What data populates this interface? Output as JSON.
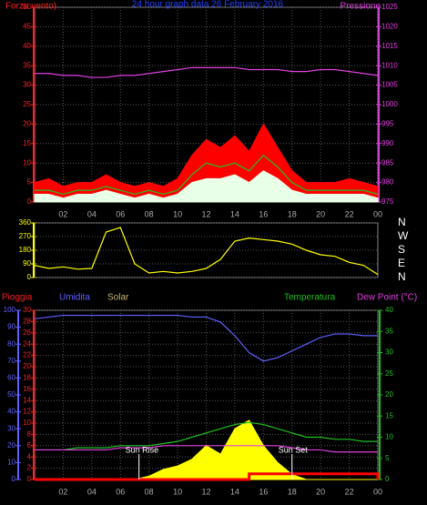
{
  "chart_data": [
    {
      "type": "line",
      "title": "24 hour graph data 26 February 2016",
      "ylabel": "Forza vento)",
      "y2label": "Pressione",
      "xlim": [
        0,
        24
      ],
      "xticks": [
        {
          "value": 2,
          "label": "02"
        },
        {
          "value": 4,
          "label": "04"
        },
        {
          "value": 6,
          "label": "06"
        },
        {
          "value": 8,
          "label": "08"
        },
        10,
        12,
        14,
        16,
        18,
        20,
        22,
        {
          "value": 24,
          "label": "00"
        }
      ],
      "ylim": [
        0,
        50
      ],
      "yticks": [
        0,
        5,
        10,
        15,
        20,
        25,
        30,
        35,
        40,
        45,
        50
      ],
      "ycolor": "#ff2020",
      "y2lim": [
        975,
        1025
      ],
      "y2ticks": [
        975,
        980,
        985,
        990,
        995,
        1000,
        1005,
        1010,
        1015,
        1020,
        1025
      ],
      "y2color": "#e040e0",
      "grid": true,
      "x": [
        0,
        1,
        2,
        3,
        4,
        5,
        6,
        7,
        8,
        9,
        10,
        11,
        12,
        13,
        14,
        15,
        16,
        17,
        18,
        19,
        20,
        21,
        22,
        23,
        24
      ],
      "series": [
        {
          "color": "#ff0000",
          "style": "area",
          "values": [
            5,
            6,
            4,
            5,
            5,
            7,
            5,
            4,
            5,
            4,
            6,
            12,
            16,
            14,
            17,
            13,
            20,
            14,
            8,
            5,
            5,
            5,
            6,
            5,
            4
          ]
        },
        {
          "color": "#20c020",
          "style": "line",
          "values": [
            3,
            3,
            2,
            3,
            3,
            4,
            3,
            2,
            3,
            2,
            3,
            7,
            10,
            9,
            10,
            8,
            12,
            9,
            5,
            3,
            3,
            3,
            3,
            3,
            2
          ]
        },
        {
          "color": "#e8ffe8",
          "style": "area",
          "values": [
            2,
            2,
            1,
            2,
            2,
            3,
            2,
            1,
            2,
            1,
            2,
            5,
            6,
            6,
            7,
            5,
            8,
            6,
            3,
            2,
            2,
            2,
            2,
            2,
            1
          ]
        },
        {
          "color": "#e040e0",
          "style": "line",
          "axis": "y2",
          "values": [
            1008,
            1008,
            1007.5,
            1007.5,
            1007,
            1007,
            1007.5,
            1007.5,
            1008,
            1008.5,
            1009,
            1009.5,
            1009.5,
            1009.5,
            1009.5,
            1009,
            1009,
            1009,
            1008.5,
            1008.5,
            1009,
            1009,
            1008.5,
            1008,
            1007.5
          ]
        }
      ]
    },
    {
      "type": "line",
      "xlim": [
        0,
        24
      ],
      "ylim": [
        0,
        360
      ],
      "yticks": [
        0,
        90,
        180,
        270,
        360
      ],
      "ycolor": "#ffff00",
      "y2lim": [
        0,
        360
      ],
      "y2ticks": [
        {
          "value": 0,
          "label": "N"
        },
        {
          "value": 90,
          "label": "E"
        },
        {
          "value": 180,
          "label": "S"
        },
        {
          "value": 270,
          "label": "W"
        },
        {
          "value": 360,
          "label": "N"
        }
      ],
      "y2color": "#ffffff",
      "grid": true,
      "x": [
        0,
        1,
        2,
        3,
        4,
        5,
        6,
        7,
        8,
        9,
        10,
        11,
        12,
        13,
        14,
        15,
        16,
        17,
        18,
        19,
        20,
        21,
        22,
        23,
        24
      ],
      "series": [
        {
          "color": "#ffff00",
          "style": "line",
          "values": [
            80,
            60,
            70,
            55,
            60,
            300,
            330,
            90,
            30,
            40,
            30,
            40,
            60,
            120,
            240,
            260,
            250,
            240,
            220,
            180,
            150,
            140,
            100,
            80,
            20
          ]
        }
      ]
    },
    {
      "type": "line",
      "labels": [
        {
          "text": "Pioggia",
          "color": "#ff2020"
        },
        {
          "text": "Umidita",
          "color": "#6060ff"
        },
        {
          "text": "Solar",
          "color": "#c8b878"
        },
        {
          "text": "Temperatura",
          "color": "#20c020"
        },
        {
          "text": "Dew Point (°C)",
          "color": "#e040e0"
        }
      ],
      "annotations": [
        {
          "text": "Sun Rise",
          "x": 7.3
        },
        {
          "text": "Sun Set",
          "x": 18
        }
      ],
      "xlim": [
        0,
        24
      ],
      "xticks": [
        {
          "value": 2,
          "label": "02"
        },
        {
          "value": 4,
          "label": "04"
        },
        {
          "value": 6,
          "label": "06"
        },
        {
          "value": 8,
          "label": "08"
        },
        10,
        12,
        14,
        16,
        18,
        20,
        22,
        {
          "value": 24,
          "label": "00"
        }
      ],
      "ylim": [
        0,
        30
      ],
      "yticks": [
        0,
        2,
        4,
        6,
        8,
        10,
        12,
        14,
        16,
        18,
        20,
        22,
        24,
        26,
        28,
        30
      ],
      "ycolor": "#ff2020",
      "y3lim": [
        0,
        100
      ],
      "y3ticks": [
        0,
        10,
        20,
        30,
        40,
        50,
        60,
        70,
        80,
        90,
        100
      ],
      "y3color": "#6060ff",
      "y2lim": [
        0,
        40
      ],
      "y2ticks": [
        0,
        5,
        10,
        15,
        20,
        25,
        30,
        35,
        40
      ],
      "y2color": "#20c020",
      "grid": true,
      "x": [
        0,
        1,
        2,
        3,
        4,
        5,
        6,
        7,
        8,
        9,
        10,
        11,
        12,
        13,
        14,
        15,
        16,
        17,
        18,
        19,
        20,
        21,
        22,
        23,
        24
      ],
      "series": [
        {
          "color": "#ffff00",
          "style": "area",
          "axis": "y3",
          "values": [
            0,
            0,
            0,
            0,
            0,
            0,
            0,
            0,
            2,
            6,
            8,
            12,
            20,
            15,
            30,
            35,
            20,
            10,
            3,
            0,
            0,
            0,
            0,
            0,
            0
          ]
        },
        {
          "color": "#6060ff",
          "style": "line",
          "axis": "y3",
          "values": [
            95,
            96,
            97,
            97,
            97,
            97,
            97,
            97,
            97,
            97,
            97,
            96,
            96,
            93,
            85,
            75,
            70,
            72,
            76,
            80,
            84,
            86,
            86,
            85,
            85
          ]
        },
        {
          "color": "#20c020",
          "style": "line",
          "axis": "y2",
          "values": [
            7,
            7,
            7,
            7.5,
            7.5,
            7.5,
            8,
            8,
            8,
            8.5,
            9,
            10,
            11,
            12,
            13,
            13.5,
            13,
            12,
            11,
            10,
            10,
            9.5,
            9.5,
            9,
            9
          ]
        },
        {
          "color": "#e040e0",
          "style": "line",
          "axis": "y2",
          "values": [
            7,
            7,
            7,
            7,
            7,
            7,
            7.5,
            7.5,
            7.5,
            8,
            8,
            8,
            8,
            8,
            8,
            8,
            8,
            8,
            7.5,
            7,
            7,
            6.5,
            6.5,
            6.5,
            6.5
          ]
        },
        {
          "color": "#ff0000",
          "style": "step",
          "values": [
            0,
            0,
            0,
            0,
            0,
            0,
            0,
            0,
            0,
            0,
            0,
            0,
            0,
            0,
            0,
            1,
            1,
            1,
            1,
            1,
            1,
            1,
            1,
            1,
            0
          ]
        }
      ]
    }
  ]
}
